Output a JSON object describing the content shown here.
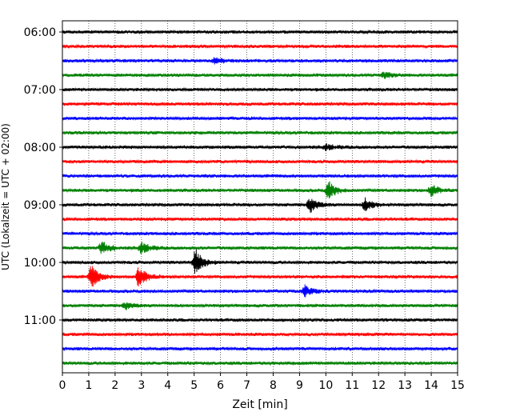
{
  "chart_data": {
    "type": "line",
    "title": "",
    "xlabel": "Zeit  [min]",
    "ylabel": "UTC (Lokalzeit = UTC + 02:00)",
    "xlim": [
      0,
      15
    ],
    "x_ticks": [
      "0",
      "1",
      "2",
      "3",
      "4",
      "5",
      "6",
      "7",
      "8",
      "9",
      "10",
      "11",
      "12",
      "13",
      "14",
      "15"
    ],
    "y_ticks": [
      "06:00",
      "07:00",
      "08:00",
      "09:00",
      "10:00",
      "11:00"
    ],
    "grid": "vertical dotted at each minute",
    "trace_interval_min": 15,
    "trace_colors": [
      "#000000",
      "#ff0000",
      "#0000ff",
      "#008000"
    ],
    "traces": [
      {
        "start": "06:00",
        "color": "#000000",
        "events": []
      },
      {
        "start": "06:15",
        "color": "#ff0000",
        "events": []
      },
      {
        "start": "06:30",
        "color": "#0000ff",
        "events": [
          {
            "t": 5.8,
            "amp": 0.35
          }
        ]
      },
      {
        "start": "06:45",
        "color": "#008000",
        "events": [
          {
            "t": 12.2,
            "amp": 0.3
          }
        ]
      },
      {
        "start": "07:00",
        "color": "#000000",
        "events": []
      },
      {
        "start": "07:15",
        "color": "#ff0000",
        "events": []
      },
      {
        "start": "07:30",
        "color": "#0000ff",
        "events": []
      },
      {
        "start": "07:45",
        "color": "#008000",
        "events": []
      },
      {
        "start": "08:00",
        "color": "#000000",
        "events": [
          {
            "t": 10.0,
            "amp": 0.3
          }
        ]
      },
      {
        "start": "08:15",
        "color": "#ff0000",
        "events": []
      },
      {
        "start": "08:30",
        "color": "#0000ff",
        "events": []
      },
      {
        "start": "08:45",
        "color": "#008000",
        "events": [
          {
            "t": 10.1,
            "amp": 0.9
          },
          {
            "t": 14.0,
            "amp": 0.6
          }
        ]
      },
      {
        "start": "09:00",
        "color": "#000000",
        "events": [
          {
            "t": 9.4,
            "amp": 0.8
          },
          {
            "t": 11.5,
            "amp": 0.7
          }
        ]
      },
      {
        "start": "09:15",
        "color": "#ff0000",
        "events": []
      },
      {
        "start": "09:30",
        "color": "#0000ff",
        "events": []
      },
      {
        "start": "09:45",
        "color": "#008000",
        "events": [
          {
            "t": 1.5,
            "amp": 0.7
          },
          {
            "t": 3.0,
            "amp": 0.6
          }
        ]
      },
      {
        "start": "10:00",
        "color": "#000000",
        "events": [
          {
            "t": 5.05,
            "amp": 1.4
          }
        ]
      },
      {
        "start": "10:15",
        "color": "#ff0000",
        "events": [
          {
            "t": 1.1,
            "amp": 1.3
          },
          {
            "t": 2.9,
            "amp": 1.2
          }
        ]
      },
      {
        "start": "10:30",
        "color": "#0000ff",
        "events": [
          {
            "t": 9.2,
            "amp": 0.6
          }
        ]
      },
      {
        "start": "10:45",
        "color": "#008000",
        "events": [
          {
            "t": 2.4,
            "amp": 0.35
          }
        ]
      },
      {
        "start": "11:00",
        "color": "#000000",
        "events": []
      },
      {
        "start": "11:15",
        "color": "#ff0000",
        "events": []
      },
      {
        "start": "11:30",
        "color": "#0000ff",
        "events": []
      },
      {
        "start": "11:45",
        "color": "#008000",
        "events": []
      }
    ]
  }
}
